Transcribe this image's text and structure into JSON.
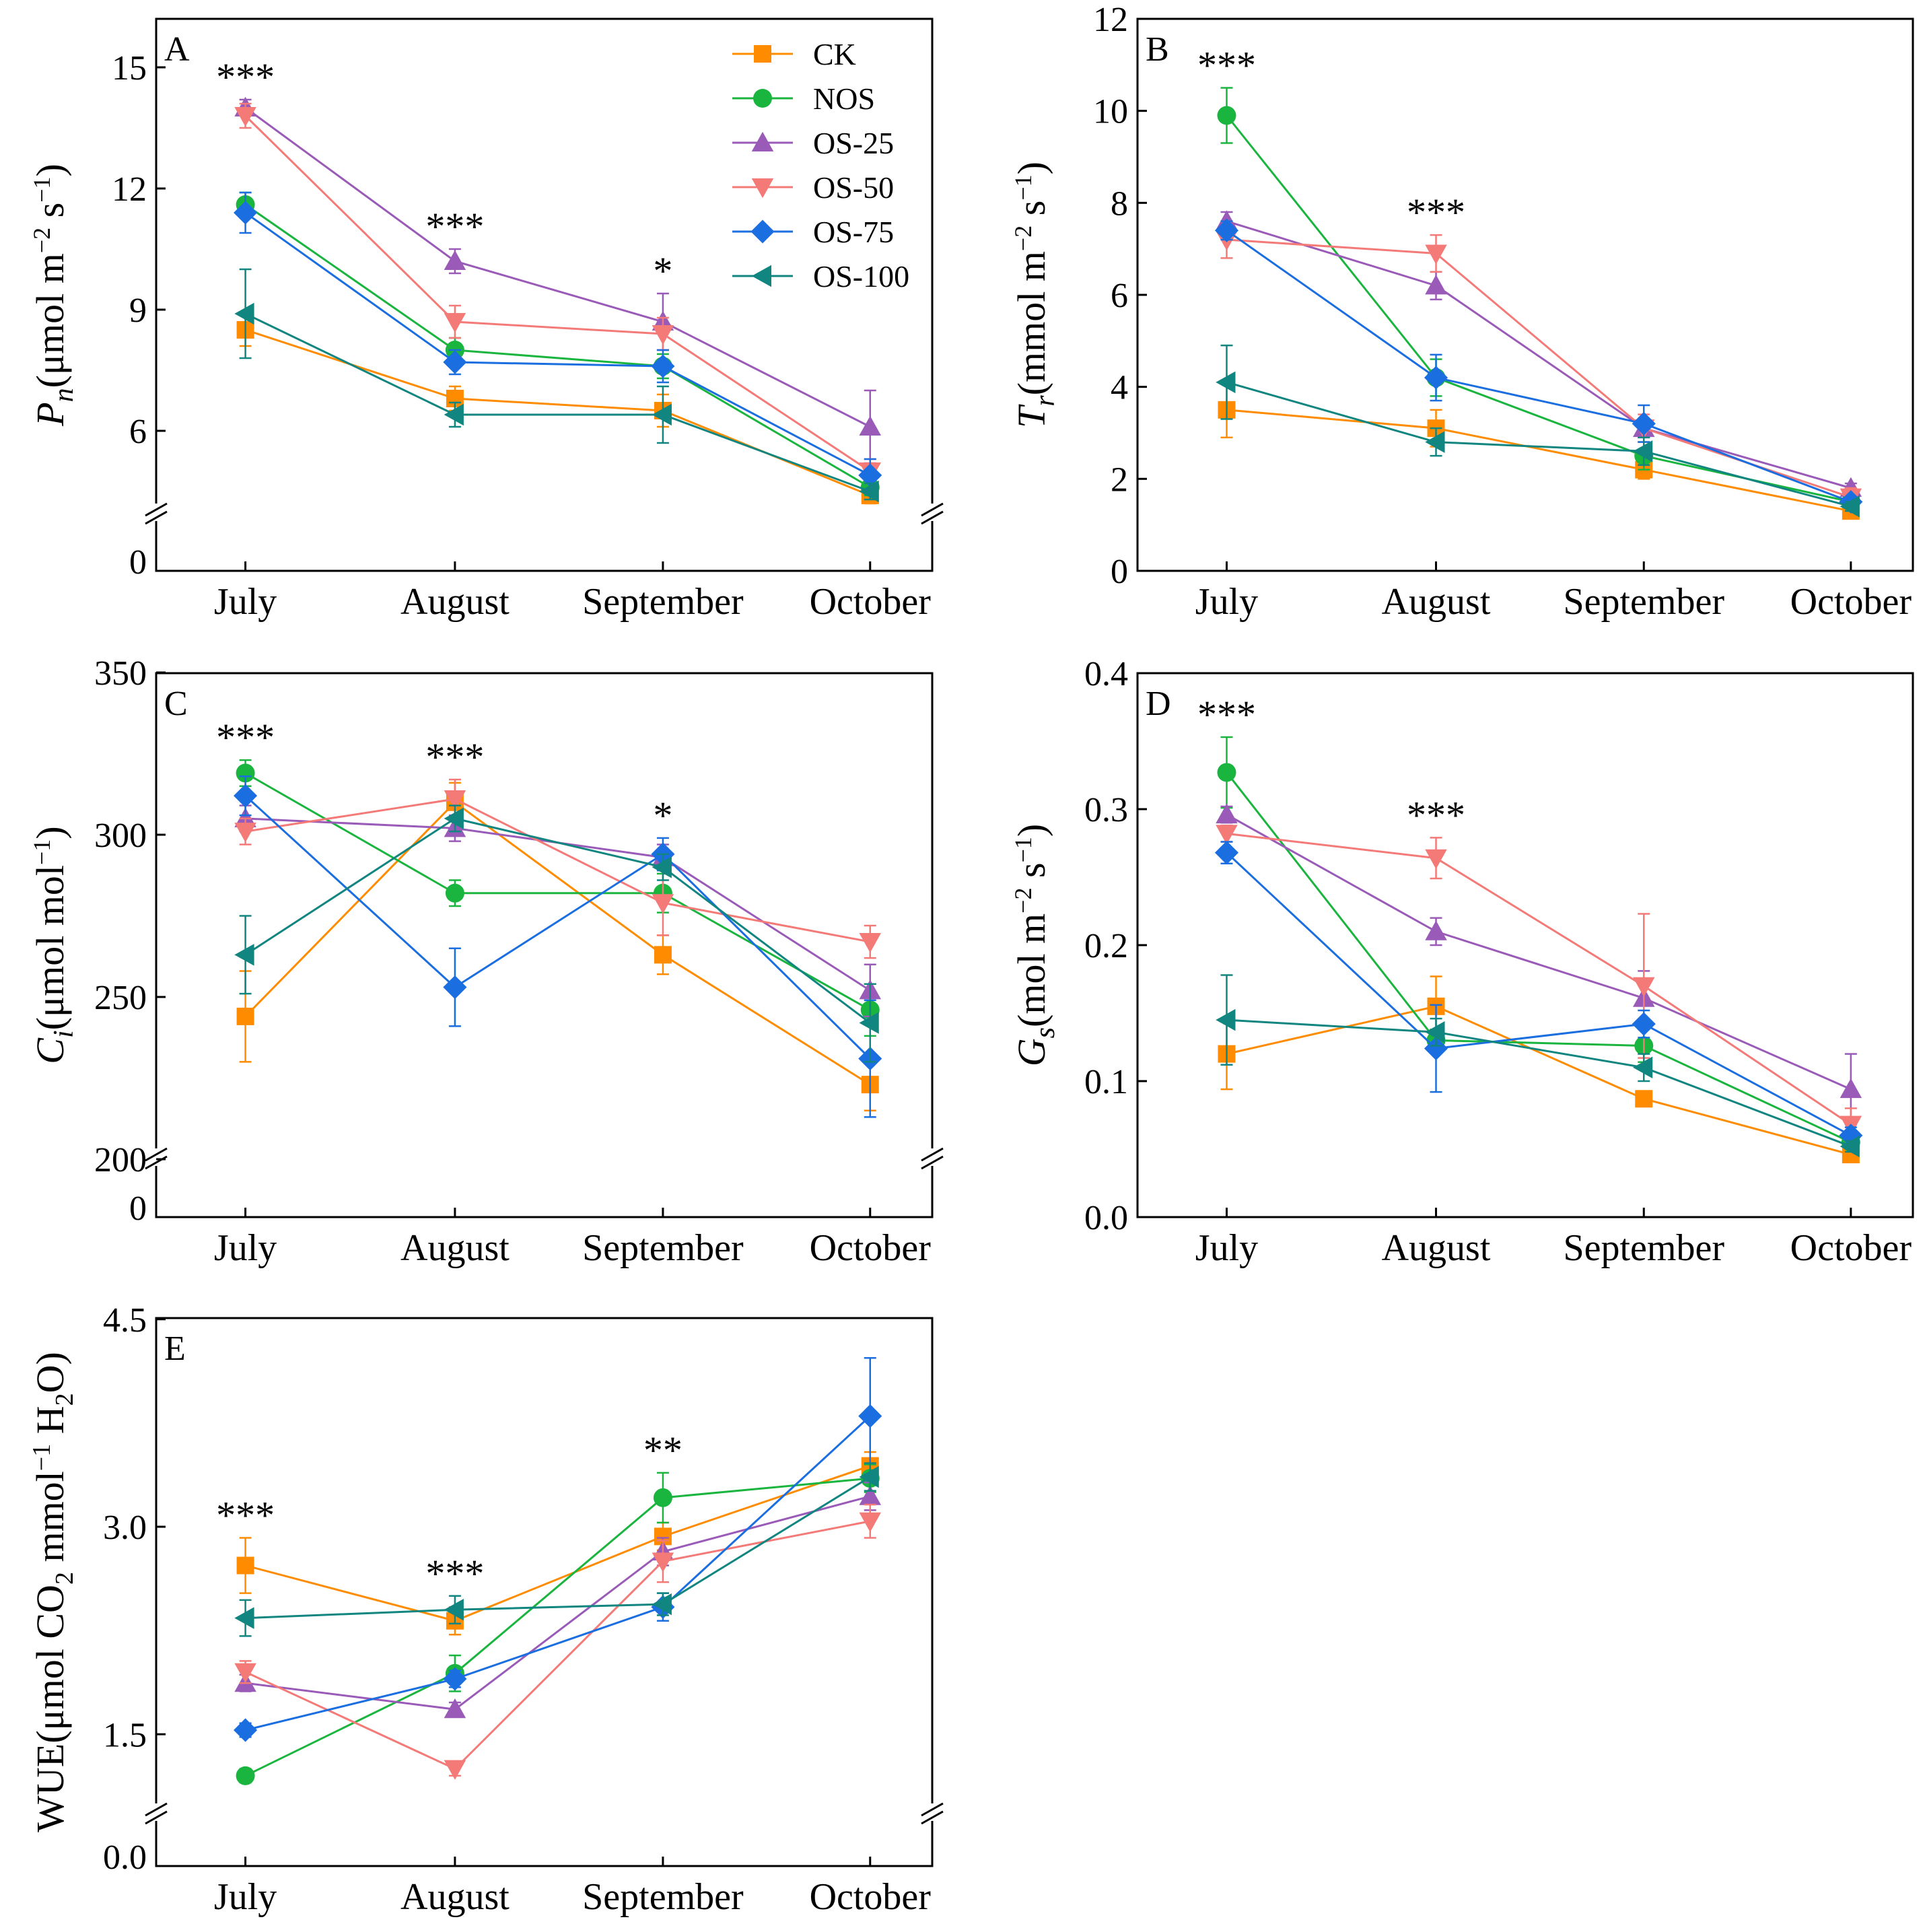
{
  "colors": {
    "CK": "#ff8c00",
    "NOS": "#1ab53f",
    "OS-25": "#9a5ab8",
    "OS-50": "#f47a78",
    "OS-75": "#1a6ee0",
    "OS-100": "#11857f"
  },
  "markers": {
    "CK": "square",
    "NOS": "circle",
    "OS-25": "triangle-up",
    "OS-50": "triangle-down",
    "OS-75": "diamond",
    "OS-100": "triangle-left"
  },
  "legend_labels": [
    "CK",
    "NOS",
    "OS-25",
    "OS-50",
    "OS-75",
    "OS-100"
  ],
  "chart_data": [
    {
      "id": "A",
      "type": "line",
      "panel_label": "A",
      "ylabel": {
        "main": "P",
        "sub": "n",
        "unit": "(μmol m",
        "sup1": "−2",
        "mid": " s",
        "sup2": "−1",
        "end": ")"
      },
      "categories": [
        "July",
        "August",
        "September",
        "October"
      ],
      "ylim": [
        0,
        16
      ],
      "axis_break": true,
      "yticks": [
        6,
        9,
        12,
        15
      ],
      "zero_tick": "0",
      "tick_labels": [
        "6",
        "9",
        "12",
        "15"
      ],
      "significance": [
        "***",
        "***",
        "*",
        ""
      ],
      "series": [
        {
          "name": "CK",
          "values": [
            8.5,
            6.8,
            6.5,
            4.4
          ],
          "err": [
            0.4,
            0.3,
            0.4,
            0.2
          ]
        },
        {
          "name": "NOS",
          "values": [
            11.6,
            8.0,
            7.6,
            4.6
          ],
          "err": [
            0.3,
            0.3,
            0.3,
            0.2
          ]
        },
        {
          "name": "OS-25",
          "values": [
            14.0,
            10.2,
            8.7,
            6.1
          ],
          "err": [
            0.2,
            0.3,
            0.7,
            0.9
          ]
        },
        {
          "name": "OS-50",
          "values": [
            13.8,
            8.7,
            8.4,
            5.0
          ],
          "err": [
            0.3,
            0.4,
            0.4,
            0.3
          ]
        },
        {
          "name": "OS-75",
          "values": [
            11.4,
            7.7,
            7.6,
            4.9
          ],
          "err": [
            0.5,
            0.3,
            0.4,
            0.4
          ]
        },
        {
          "name": "OS-100",
          "values": [
            8.9,
            6.4,
            6.4,
            4.5
          ],
          "err": [
            1.1,
            0.3,
            0.7,
            0.2
          ]
        }
      ]
    },
    {
      "id": "B",
      "type": "line",
      "panel_label": "B",
      "ylabel": {
        "main": "T",
        "sub": "r",
        "unit": "(mmol m",
        "sup1": "−2",
        "mid": " s",
        "sup2": "−1",
        "end": ")"
      },
      "categories": [
        "July",
        "August",
        "September",
        "October"
      ],
      "ylim": [
        0,
        12
      ],
      "axis_break": false,
      "yticks": [
        0,
        2,
        4,
        6,
        8,
        10,
        12
      ],
      "tick_labels": [
        "0",
        "2",
        "4",
        "6",
        "8",
        "10",
        "12"
      ],
      "significance": [
        "***",
        "***",
        "",
        ""
      ],
      "series": [
        {
          "name": "CK",
          "values": [
            3.5,
            3.1,
            2.2,
            1.3
          ],
          "err": [
            0.6,
            0.4,
            0.2,
            0.1
          ]
        },
        {
          "name": "NOS",
          "values": [
            9.9,
            4.2,
            2.5,
            1.5
          ],
          "err": [
            0.6,
            0.4,
            0.3,
            0.1
          ]
        },
        {
          "name": "OS-25",
          "values": [
            7.6,
            6.2,
            3.1,
            1.8
          ],
          "err": [
            0.2,
            0.3,
            0.2,
            0.1
          ]
        },
        {
          "name": "OS-50",
          "values": [
            7.2,
            6.9,
            3.1,
            1.6
          ],
          "err": [
            0.4,
            0.4,
            0.3,
            0.2
          ]
        },
        {
          "name": "OS-75",
          "values": [
            7.4,
            4.2,
            3.2,
            1.5
          ],
          "err": [
            0.2,
            0.5,
            0.4,
            0.1
          ]
        },
        {
          "name": "OS-100",
          "values": [
            4.1,
            2.8,
            2.6,
            1.4
          ],
          "err": [
            0.8,
            0.3,
            0.3,
            0.1
          ]
        }
      ]
    },
    {
      "id": "C",
      "type": "line",
      "panel_label": "C",
      "ylabel": {
        "main": "C",
        "sub": "i",
        "unit": "(μmol mol",
        "sup1": "−1",
        "mid": "",
        "sup2": "",
        "end": ")"
      },
      "categories": [
        "July",
        "August",
        "September",
        "October"
      ],
      "ylim": [
        0,
        350
      ],
      "axis_break": true,
      "yticks": [
        200,
        250,
        300,
        350
      ],
      "zero_tick": "0",
      "tick_labels": [
        "200",
        "250",
        "300",
        "350"
      ],
      "significance": [
        "***",
        "***",
        "*",
        ""
      ],
      "series": [
        {
          "name": "CK",
          "values": [
            244,
            310,
            263,
            223
          ],
          "err": [
            14,
            6,
            6,
            8
          ]
        },
        {
          "name": "NOS",
          "values": [
            319,
            282,
            282,
            246
          ],
          "err": [
            4,
            4,
            6,
            8
          ]
        },
        {
          "name": "OS-25",
          "values": [
            305,
            302,
            293,
            252
          ],
          "err": [
            4,
            4,
            4,
            8
          ]
        },
        {
          "name": "OS-50",
          "values": [
            301,
            311,
            279,
            267
          ],
          "err": [
            4,
            6,
            10,
            5
          ]
        },
        {
          "name": "OS-75",
          "values": [
            312,
            253,
            294,
            231
          ],
          "err": [
            6,
            12,
            5,
            18
          ]
        },
        {
          "name": "OS-100",
          "values": [
            263,
            305,
            290,
            242
          ],
          "err": [
            12,
            4,
            4,
            12
          ]
        }
      ]
    },
    {
      "id": "D",
      "type": "line",
      "panel_label": "D",
      "ylabel": {
        "main": "G",
        "sub": "s",
        "unit": "(mol m",
        "sup1": "−2",
        "mid": " s",
        "sup2": "−1",
        "end": ")"
      },
      "categories": [
        "July",
        "August",
        "September",
        "October"
      ],
      "ylim": [
        0,
        0.4
      ],
      "axis_break": false,
      "yticks": [
        0,
        0.1,
        0.2,
        0.3,
        0.4
      ],
      "tick_labels": [
        "0.0",
        "0.1",
        "0.2",
        "0.3",
        "0.4"
      ],
      "significance": [
        "***",
        "***",
        "",
        ""
      ],
      "series": [
        {
          "name": "CK",
          "values": [
            0.12,
            0.155,
            0.087,
            0.046
          ],
          "err": [
            0.026,
            0.022,
            0.004,
            0.004
          ]
        },
        {
          "name": "NOS",
          "values": [
            0.327,
            0.13,
            0.126,
            0.055
          ],
          "err": [
            0.026,
            0.008,
            0.012,
            0.005
          ]
        },
        {
          "name": "OS-25",
          "values": [
            0.296,
            0.21,
            0.161,
            0.094
          ],
          "err": [
            0.006,
            0.01,
            0.02,
            0.026
          ]
        },
        {
          "name": "OS-50",
          "values": [
            0.282,
            0.264,
            0.17,
            0.068
          ],
          "err": [
            0.006,
            0.015,
            0.053,
            0.012
          ]
        },
        {
          "name": "OS-75",
          "values": [
            0.268,
            0.124,
            0.142,
            0.06
          ],
          "err": [
            0.008,
            0.032,
            0.01,
            0.006
          ]
        },
        {
          "name": "OS-100",
          "values": [
            0.145,
            0.136,
            0.11,
            0.052
          ],
          "err": [
            0.033,
            0.01,
            0.01,
            0.004
          ]
        }
      ]
    },
    {
      "id": "E",
      "type": "line",
      "panel_label": "E",
      "ylabel": {
        "main": "WUE(μmol CO",
        "sub": "2",
        "unit": " mmol",
        "sup1": "−1",
        "mid": " H",
        "sub2": "2",
        "end": "O)"
      },
      "categories": [
        "July",
        "August",
        "September",
        "October"
      ],
      "ylim": [
        0,
        4.5
      ],
      "axis_break": true,
      "yticks": [
        1.5,
        3.0,
        4.5
      ],
      "zero_tick": "0.0",
      "tick_labels": [
        "1.5",
        "3.0",
        "4.5"
      ],
      "significance": [
        "***",
        "***",
        "**",
        ""
      ],
      "series": [
        {
          "name": "CK",
          "values": [
            2.72,
            2.32,
            2.93,
            3.44
          ],
          "err": [
            0.2,
            0.1,
            0.1,
            0.1
          ]
        },
        {
          "name": "NOS",
          "values": [
            1.2,
            1.94,
            3.21,
            3.35
          ],
          "err": [
            0.05,
            0.13,
            0.18,
            0.1
          ]
        },
        {
          "name": "OS-25",
          "values": [
            1.87,
            1.68,
            2.82,
            3.22
          ],
          "err": [
            0.06,
            0.05,
            0.1,
            0.1
          ]
        },
        {
          "name": "OS-50",
          "values": [
            1.95,
            1.25,
            2.75,
            3.04
          ],
          "err": [
            0.08,
            0.05,
            0.15,
            0.12
          ]
        },
        {
          "name": "OS-75",
          "values": [
            1.53,
            1.9,
            2.42,
            3.8
          ],
          "err": [
            0.05,
            0.06,
            0.1,
            0.42
          ]
        },
        {
          "name": "OS-100",
          "values": [
            2.34,
            2.4,
            2.44,
            3.36
          ],
          "err": [
            0.13,
            0.1,
            0.08,
            0.1
          ]
        }
      ]
    }
  ]
}
